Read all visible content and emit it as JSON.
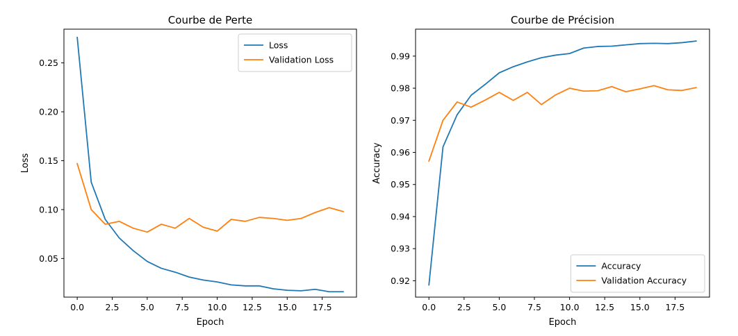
{
  "chart_data": [
    {
      "type": "line",
      "title": "Courbe de Perte",
      "xlabel": "Epoch",
      "ylabel": "Loss",
      "xlim": [
        -0.95,
        19.95
      ],
      "ylim": [
        0.0105,
        0.2845
      ],
      "xticks": [
        0.0,
        2.5,
        5.0,
        7.5,
        10.0,
        12.5,
        15.0,
        17.5
      ],
      "xtick_labels": [
        "0.0",
        "2.5",
        "5.0",
        "7.5",
        "10.0",
        "12.5",
        "15.0",
        "17.5"
      ],
      "yticks": [
        0.05,
        0.1,
        0.15,
        0.2,
        0.25
      ],
      "ytick_labels": [
        "0.05",
        "0.10",
        "0.15",
        "0.20",
        "0.25"
      ],
      "legend_position": "upper right",
      "grid": false,
      "x": [
        0,
        1,
        2,
        3,
        4,
        5,
        6,
        7,
        8,
        9,
        10,
        11,
        12,
        13,
        14,
        15,
        16,
        17,
        18,
        19
      ],
      "series": [
        {
          "name": "Loss",
          "color": "#1f77b4",
          "values": [
            0.276,
            0.128,
            0.09,
            0.071,
            0.058,
            0.047,
            0.04,
            0.036,
            0.031,
            0.028,
            0.026,
            0.023,
            0.022,
            0.022,
            0.019,
            0.0175,
            0.017,
            0.0185,
            0.016,
            0.016
          ]
        },
        {
          "name": "Validation Loss",
          "color": "#ff7f0e",
          "values": [
            0.147,
            0.1,
            0.085,
            0.088,
            0.081,
            0.077,
            0.085,
            0.081,
            0.091,
            0.082,
            0.078,
            0.09,
            0.088,
            0.092,
            0.091,
            0.089,
            0.091,
            0.097,
            0.102,
            0.098
          ]
        }
      ]
    },
    {
      "type": "line",
      "title": "Courbe de Précision",
      "xlabel": "Epoch",
      "ylabel": "Accuracy",
      "xlim": [
        -0.95,
        19.95
      ],
      "ylim": [
        0.9149,
        0.9984
      ],
      "xticks": [
        0.0,
        2.5,
        5.0,
        7.5,
        10.0,
        12.5,
        15.0,
        17.5
      ],
      "xtick_labels": [
        "0.0",
        "2.5",
        "5.0",
        "7.5",
        "10.0",
        "12.5",
        "15.0",
        "17.5"
      ],
      "yticks": [
        0.92,
        0.93,
        0.94,
        0.95,
        0.96,
        0.97,
        0.98,
        0.99
      ],
      "ytick_labels": [
        "0.92",
        "0.93",
        "0.94",
        "0.95",
        "0.96",
        "0.97",
        "0.98",
        "0.99"
      ],
      "legend_position": "lower right",
      "grid": false,
      "x": [
        0,
        1,
        2,
        3,
        4,
        5,
        6,
        7,
        8,
        9,
        10,
        11,
        12,
        13,
        14,
        15,
        16,
        17,
        18,
        19
      ],
      "series": [
        {
          "name": "Accuracy",
          "color": "#1f77b4",
          "values": [
            0.9187,
            0.9617,
            0.9717,
            0.9778,
            0.9812,
            0.9848,
            0.9867,
            0.9882,
            0.9895,
            0.9903,
            0.9908,
            0.9925,
            0.993,
            0.9931,
            0.9935,
            0.9939,
            0.994,
            0.9939,
            0.9942,
            0.9947
          ]
        },
        {
          "name": "Validation Accuracy",
          "color": "#ff7f0e",
          "values": [
            0.9573,
            0.97,
            0.9757,
            0.9741,
            0.9763,
            0.9787,
            0.9762,
            0.9787,
            0.9749,
            0.9779,
            0.98,
            0.9791,
            0.9792,
            0.9805,
            0.9789,
            0.9798,
            0.9808,
            0.9795,
            0.9793,
            0.9802
          ]
        }
      ]
    }
  ]
}
